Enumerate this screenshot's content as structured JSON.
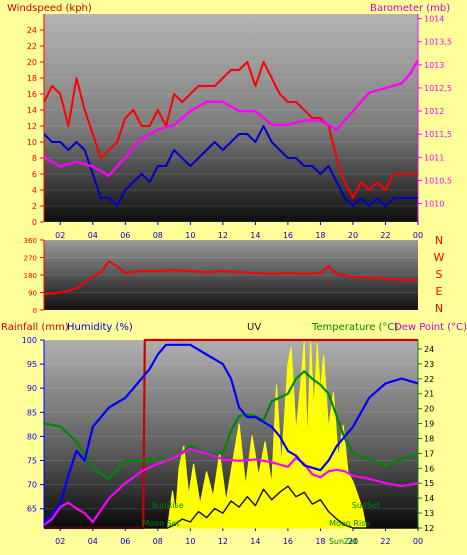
{
  "colors": {
    "background": "#ffff99",
    "windspeed": "#ff0000",
    "wind_avg": "#0000cc",
    "barometer": "#ff00ff",
    "rainfall": "#cc0000",
    "humidity": "#0000ff",
    "uv": "#111111",
    "temperature": "#008800",
    "dewpoint": "#ff00ff",
    "solar": "#ffff00",
    "header_faint": "#ffe000"
  },
  "header_text": {
    "faint_top": "",
    "faint_bottom": ""
  },
  "chart_data": [
    {
      "id": "wind-baro",
      "type": "line",
      "ylabel": "Windspeed (kph)",
      "y2label": "Barometer (mb)",
      "x_ticks": [
        "02",
        "04",
        "06",
        "08",
        "10",
        "12",
        "14",
        "16",
        "18",
        "20",
        "22",
        "00"
      ],
      "xlim": [
        1,
        24
      ],
      "ylim": [
        0,
        26
      ],
      "y_ticks": [
        0,
        2,
        4,
        6,
        8,
        10,
        12,
        14,
        16,
        18,
        20,
        22,
        24
      ],
      "y2lim": [
        1009.6,
        1014.1
      ],
      "y2_ticks": [
        "1010",
        "1010,5",
        "1011",
        "1011,5",
        "1012",
        "1012,5",
        "1013",
        "1013,5",
        "1014"
      ],
      "series": [
        {
          "role": "gust",
          "x": [
            1,
            1.5,
            2,
            2.5,
            3,
            3.5,
            4,
            4.5,
            5,
            5.5,
            6,
            6.5,
            7,
            7.5,
            8,
            8.5,
            9,
            9.5,
            10,
            10.5,
            11,
            11.5,
            12,
            12.5,
            13,
            13.5,
            14,
            14.5,
            15,
            15.5,
            16,
            16.5,
            17,
            17.5,
            18,
            18.5,
            19,
            19.5,
            20,
            20.5,
            21,
            21.5,
            22,
            22.5,
            23,
            23.5,
            24
          ],
          "values": [
            15,
            17,
            16,
            12,
            18,
            14,
            11,
            8,
            9,
            10,
            13,
            14,
            12,
            12,
            14,
            12,
            16,
            15,
            16,
            17,
            17,
            17,
            18,
            19,
            19,
            20,
            17,
            20,
            18,
            16,
            15,
            15,
            14,
            13,
            13,
            12,
            8,
            5,
            3,
            5,
            4,
            5,
            4,
            6,
            6,
            6,
            6
          ]
        },
        {
          "role": "average",
          "x": [
            1,
            1.5,
            2,
            2.5,
            3,
            3.5,
            4,
            4.5,
            5,
            5.5,
            6,
            6.5,
            7,
            7.5,
            8,
            8.5,
            9,
            9.5,
            10,
            10.5,
            11,
            11.5,
            12,
            12.5,
            13,
            13.5,
            14,
            14.5,
            15,
            15.5,
            16,
            16.5,
            17,
            17.5,
            18,
            18.5,
            19,
            19.5,
            20,
            20.5,
            21,
            21.5,
            22,
            22.5,
            23,
            23.5,
            24
          ],
          "values": [
            11,
            10,
            10,
            9,
            10,
            9,
            6,
            3,
            3,
            2,
            4,
            5,
            6,
            5,
            7,
            7,
            9,
            8,
            7,
            8,
            9,
            10,
            9,
            10,
            11,
            11,
            10,
            12,
            10,
            9,
            8,
            8,
            7,
            7,
            6,
            7,
            5,
            3,
            2,
            3,
            2,
            3,
            2,
            3,
            3,
            3,
            3
          ]
        },
        {
          "role": "barometer",
          "axis": "y2",
          "x": [
            1,
            1.5,
            2,
            3,
            4,
            5,
            6,
            7,
            8,
            9,
            10,
            11,
            12,
            13,
            14,
            15,
            16,
            17,
            18,
            19,
            20,
            21,
            22,
            23,
            23.5,
            24
          ],
          "values": [
            1011.0,
            1010.9,
            1010.8,
            1010.9,
            1010.8,
            1010.6,
            1011.0,
            1011.4,
            1011.6,
            1011.7,
            1012.0,
            1012.2,
            1012.2,
            1012.0,
            1012.0,
            1011.7,
            1011.7,
            1011.8,
            1011.8,
            1011.6,
            1012.0,
            1012.4,
            1012.5,
            1012.6,
            1012.8,
            1013.1
          ]
        }
      ]
    },
    {
      "id": "wind-direction",
      "type": "line",
      "y_ticks": [
        0,
        90,
        180,
        270,
        360
      ],
      "ylim": [
        0,
        360
      ],
      "xlim": [
        1,
        24
      ],
      "compass": [
        "N",
        "W",
        "S",
        "E",
        "N"
      ],
      "series": [
        {
          "role": "direction",
          "x": [
            1,
            2,
            3,
            3.5,
            4,
            4.5,
            5,
            5.5,
            6,
            7,
            8,
            9,
            10,
            11,
            12,
            13,
            14,
            15,
            16,
            17,
            18,
            18.5,
            19,
            20,
            21,
            22,
            23,
            24
          ],
          "values": [
            80,
            90,
            110,
            140,
            170,
            195,
            250,
            225,
            190,
            200,
            200,
            205,
            200,
            195,
            200,
            195,
            190,
            185,
            190,
            185,
            190,
            225,
            185,
            170,
            165,
            160,
            155,
            150
          ]
        }
      ]
    },
    {
      "id": "rain-hum-uv-temp",
      "type": "line",
      "labels": {
        "rainfall": "Rainfall (mm)",
        "humidity": "Humidity (%)",
        "uv": "UV",
        "temperature": "Temperature (°C)",
        "dewpoint": "Dew Point (°C)"
      },
      "x_ticks": [
        "02",
        "04",
        "06",
        "08",
        "10",
        "12",
        "14",
        "16",
        "18",
        "20",
        "22",
        "00"
      ],
      "xlim": [
        1,
        24
      ],
      "ylim": [
        61,
        100
      ],
      "y_ticks": [
        65,
        70,
        75,
        80,
        85,
        90,
        95,
        100
      ],
      "y2lim": [
        12,
        24.6
      ],
      "y2_ticks": [
        12,
        13,
        14,
        15,
        16,
        17,
        18,
        19,
        20,
        21,
        22,
        23,
        24
      ],
      "events": [
        {
          "label": "SunRise",
          "x": 8.6
        },
        {
          "label": "Moon Set",
          "x": 8.2
        },
        {
          "label": "SunSet",
          "x": 20.8
        },
        {
          "label": "Moon Rise",
          "x": 19.8
        },
        {
          "label": "SunZet",
          "x": 19.4
        }
      ],
      "series": [
        {
          "role": "humidity",
          "x": [
            1,
            1.5,
            2,
            2.5,
            3,
            3.5,
            4,
            5,
            6,
            7,
            7.5,
            8,
            8.5,
            9,
            10,
            11,
            12,
            12.5,
            13,
            13.5,
            14,
            14.5,
            15,
            15.5,
            16,
            16.5,
            17,
            18,
            18.5,
            19,
            19.5,
            20,
            20.5,
            21,
            22,
            23,
            24
          ],
          "values": [
            62,
            64,
            66,
            72,
            77,
            75,
            82,
            86,
            88,
            92,
            94,
            97,
            99,
            99,
            99,
            97,
            95,
            92,
            86,
            84,
            84,
            83,
            82,
            80,
            77,
            76,
            74,
            73,
            75,
            78,
            80,
            82,
            85,
            88,
            91,
            92,
            91
          ]
        },
        {
          "role": "temperature",
          "axis": "y2",
          "x": [
            1,
            2,
            3,
            4,
            5,
            6,
            7,
            8,
            9,
            10,
            11,
            12,
            12.5,
            13,
            13.5,
            14,
            14.5,
            15,
            16,
            16.5,
            17,
            17.5,
            18,
            18.5,
            19,
            19.5,
            20,
            21,
            22,
            23,
            24
          ],
          "values": [
            19.0,
            18.8,
            17.8,
            16.0,
            15.3,
            16.5,
            16.5,
            16.6,
            16.6,
            17.5,
            17.0,
            17.0,
            18.5,
            19.5,
            19.6,
            19.5,
            19.2,
            20.5,
            21.0,
            22.0,
            22.5,
            22.0,
            21.6,
            21.0,
            19.5,
            18.0,
            17.0,
            16.6,
            16.2,
            16.6,
            17.0
          ]
        },
        {
          "role": "dewpoint",
          "axis": "y2",
          "x": [
            1,
            1.5,
            2,
            2.5,
            3,
            3.5,
            4,
            5,
            6,
            7,
            8,
            9,
            10,
            11,
            12,
            13,
            14,
            15,
            16,
            16.5,
            17,
            17.5,
            18,
            18.5,
            19,
            19.5,
            20,
            21,
            22,
            23,
            24
          ],
          "values": [
            12.2,
            12.6,
            13.4,
            13.7,
            13.3,
            13.0,
            12.4,
            14.0,
            15.0,
            15.8,
            16.3,
            16.7,
            17.3,
            17.0,
            16.6,
            16.5,
            16.6,
            16.4,
            16.1,
            16.7,
            16.3,
            15.6,
            15.4,
            15.8,
            15.9,
            15.8,
            15.5,
            15.3,
            15.0,
            14.8,
            15.0
          ]
        },
        {
          "role": "solar",
          "axis": "y2",
          "x": [
            8.6,
            8.9,
            9.1,
            9.3,
            9.6,
            9.9,
            10.2,
            10.6,
            11,
            11.4,
            11.8,
            12.2,
            12.6,
            13,
            13.4,
            13.8,
            14.2,
            14.6,
            15,
            15.3,
            15.6,
            16,
            16.2,
            16.5,
            16.8,
            17,
            17.2,
            17.4,
            17.6,
            17.8,
            18,
            18.2,
            18.5,
            18.8,
            19.1,
            19.4,
            19.7,
            20,
            20.3,
            20.6,
            20.8
          ],
          "values": [
            12,
            14.5,
            13,
            16,
            17.5,
            14.2,
            16.3,
            13.6,
            15.8,
            14.1,
            17,
            13.8,
            16.4,
            19,
            14.8,
            18.2,
            15.5,
            17.8,
            14.9,
            21.6,
            16.2,
            23,
            24.1,
            18.4,
            21.8,
            24.5,
            17.6,
            24.5,
            19.8,
            24.4,
            21.2,
            23.6,
            18.6,
            21.1,
            16.7,
            18.9,
            15.7,
            15.1,
            14.2,
            13.2,
            12
          ]
        },
        {
          "role": "uv",
          "axis": "y2",
          "x": [
            1,
            8.6,
            9,
            9.5,
            10,
            10.5,
            11,
            11.5,
            12,
            12.5,
            13,
            13.5,
            14,
            14.5,
            15,
            15.5,
            16,
            16.5,
            17,
            17.5,
            18,
            18.5,
            19,
            19.5,
            20,
            24
          ],
          "values": [
            12,
            12,
            12.2,
            12.6,
            12.4,
            13.1,
            12.7,
            13.3,
            13.0,
            13.8,
            13.4,
            14.1,
            13.5,
            14.6,
            13.9,
            14.4,
            14.8,
            14.1,
            14.4,
            13.6,
            13.9,
            13.1,
            12.6,
            12.2,
            12,
            12
          ]
        },
        {
          "role": "rain",
          "x": [
            1,
            7.1,
            7.2,
            24
          ],
          "values": [
            61,
            61,
            100,
            100
          ]
        }
      ]
    }
  ]
}
